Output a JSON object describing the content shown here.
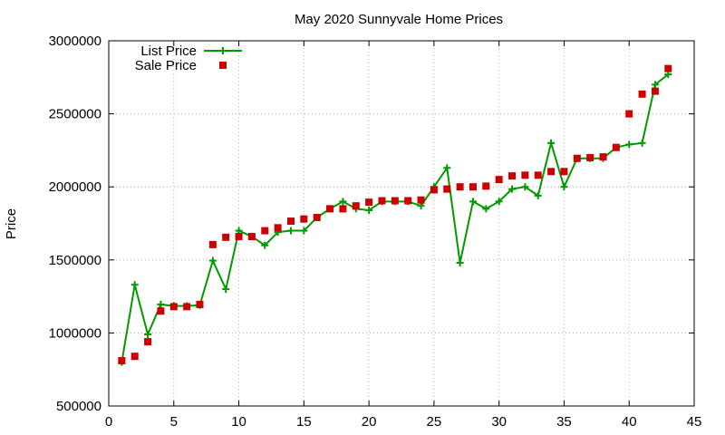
{
  "chart_data": {
    "type": "scatter",
    "title": "May 2020 Sunnyvale Home Prices",
    "xlabel": "",
    "ylabel": "Price",
    "xlim": [
      0,
      45
    ],
    "ylim": [
      500000,
      3000000
    ],
    "xticks": [
      0,
      5,
      10,
      15,
      20,
      25,
      30,
      35,
      40,
      45
    ],
    "yticks": [
      500000,
      1000000,
      1500000,
      2000000,
      2500000,
      3000000
    ],
    "grid": true,
    "legend_position": "top-left",
    "series": [
      {
        "name": "List Price",
        "type": "line",
        "marker": "plus",
        "color": "#009900",
        "x": [
          1,
          2,
          3,
          4,
          5,
          6,
          7,
          8,
          9,
          10,
          11,
          12,
          13,
          14,
          15,
          16,
          17,
          18,
          19,
          20,
          21,
          22,
          23,
          24,
          25,
          26,
          27,
          28,
          29,
          30,
          31,
          32,
          33,
          34,
          35,
          36,
          37,
          38,
          39,
          40,
          41,
          42,
          43
        ],
        "y": [
          800000,
          1330000,
          990000,
          1195000,
          1185000,
          1185000,
          1190000,
          1495000,
          1300000,
          1700000,
          1660000,
          1600000,
          1690000,
          1700000,
          1700000,
          1790000,
          1850000,
          1900000,
          1850000,
          1840000,
          1900000,
          1900000,
          1900000,
          1870000,
          2000000,
          2130000,
          1480000,
          1900000,
          1850000,
          1900000,
          1985000,
          2000000,
          1940000,
          2300000,
          2000000,
          2195000,
          2195000,
          2195000,
          2270000,
          2290000,
          2300000,
          2700000,
          2770000
        ]
      },
      {
        "name": "Sale Price",
        "type": "scatter",
        "marker": "square",
        "color": "#cc0000",
        "x": [
          1,
          2,
          3,
          4,
          5,
          6,
          7,
          8,
          9,
          10,
          11,
          12,
          13,
          14,
          15,
          16,
          17,
          18,
          19,
          20,
          21,
          22,
          23,
          24,
          25,
          26,
          27,
          28,
          29,
          30,
          31,
          32,
          33,
          34,
          35,
          36,
          37,
          38,
          39,
          40,
          41,
          42,
          43
        ],
        "y": [
          810000,
          840000,
          940000,
          1150000,
          1180000,
          1180000,
          1195000,
          1605000,
          1655000,
          1660000,
          1660000,
          1700000,
          1720000,
          1765000,
          1780000,
          1790000,
          1850000,
          1850000,
          1870000,
          1895000,
          1905000,
          1905000,
          1905000,
          1910000,
          1980000,
          1985000,
          2000000,
          2000000,
          2005000,
          2050000,
          2075000,
          2080000,
          2080000,
          2105000,
          2105000,
          2195000,
          2200000,
          2205000,
          2270000,
          2500000,
          2635000,
          2655000,
          2810000
        ]
      }
    ]
  }
}
